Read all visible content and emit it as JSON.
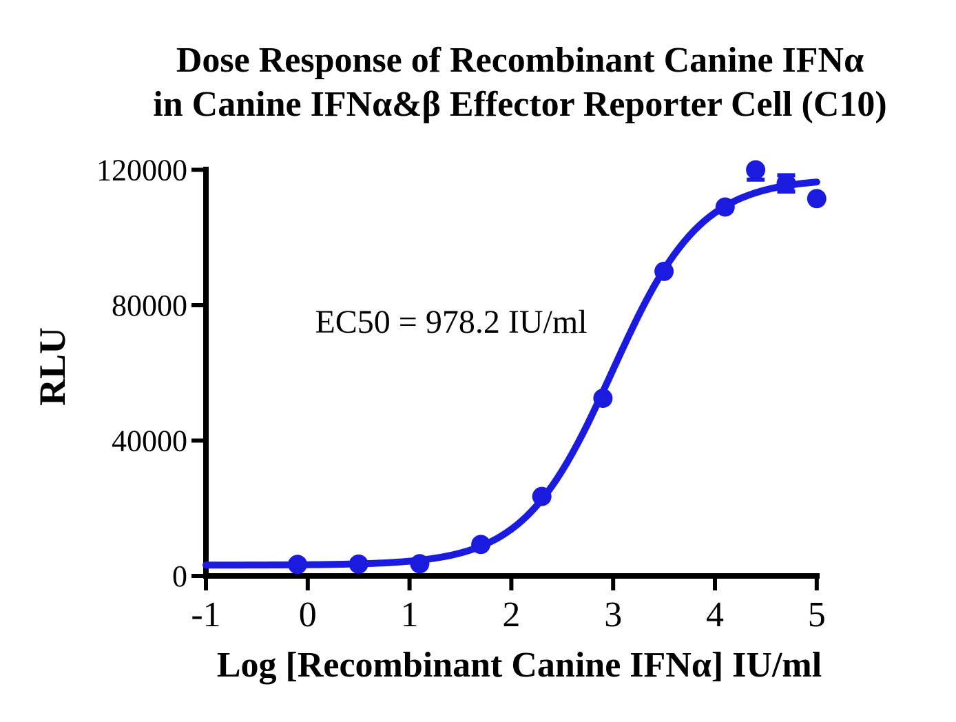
{
  "title": {
    "line1": "Dose Response of Recombinant Canine IFNα",
    "line2": "in Canine IFNα&β Effector Reporter Cell (C10)"
  },
  "chart_data": {
    "type": "scatter",
    "subtype": "sigmoidal-dose-response-with-fit-curve",
    "title": "Dose Response of Recombinant Canine IFNα in Canine IFNα&β Effector Reporter Cell (C10)",
    "xlabel": "Log [Recombinant Canine IFNα] IU/ml",
    "ylabel": "RLU",
    "xlim": [
      -1,
      5
    ],
    "ylim": [
      0,
      120000
    ],
    "xticks": [
      -1,
      0,
      1,
      2,
      3,
      4,
      5
    ],
    "yticks": [
      0,
      40000,
      80000,
      120000
    ],
    "grid": false,
    "legend": "none",
    "series": [
      {
        "name": "Recombinant Canine IFNα",
        "marker": "circle",
        "color": "#1b1be0",
        "points": [
          {
            "x": -0.1,
            "y": 3400
          },
          {
            "x": 0.5,
            "y": 3500
          },
          {
            "x": 1.1,
            "y": 3600
          },
          {
            "x": 1.7,
            "y": 9300
          },
          {
            "x": 2.3,
            "y": 23500
          },
          {
            "x": 2.9,
            "y": 52500
          },
          {
            "x": 3.5,
            "y": 90000
          },
          {
            "x": 4.1,
            "y": 109000
          },
          {
            "x": 4.4,
            "y": 120000,
            "err": 2900
          },
          {
            "x": 4.7,
            "y": 116000,
            "err": 2400
          },
          {
            "x": 5.0,
            "y": 111500
          }
        ]
      }
    ],
    "fit": {
      "model": "4PL sigmoidal",
      "bottom": 3200,
      "top": 117500,
      "logEC50": 2.99,
      "hill_slope": 1.0,
      "ec50_value_iu_ml": 978.2,
      "ec50_label": "EC50 = 978.2 IU/ml"
    },
    "colors": {
      "curve": "#1b1be0",
      "axis": "#000000",
      "text": "#000000"
    }
  }
}
